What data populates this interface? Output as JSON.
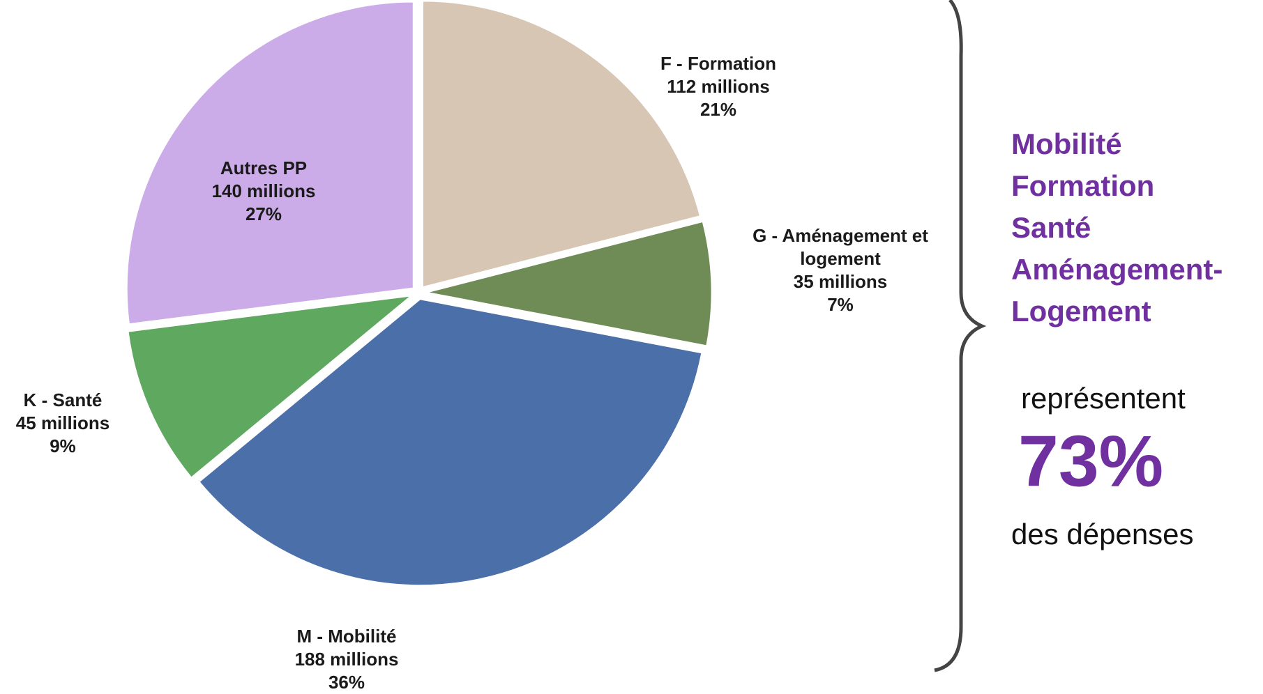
{
  "chart_data": {
    "type": "pie",
    "categories": [
      "F - Formation",
      "G - Aménagement et logement",
      "M - Mobilité",
      "K - Santé",
      "Autres PP"
    ],
    "amounts": [
      112,
      35,
      188,
      45,
      140
    ],
    "amount_labels": [
      "112 millions",
      "35 millions",
      "188 millions",
      "45 millions",
      "140 millions"
    ],
    "values": [
      21,
      7,
      36,
      9,
      27
    ],
    "value_labels": [
      "21%",
      "7%",
      "36%",
      "9%",
      "27%"
    ],
    "colors": [
      "#d8c6b4",
      "#6f8c57",
      "#4b6fa8",
      "#5fa860",
      "#cbabe8"
    ],
    "annotation": {
      "highlights": [
        "Mobilité",
        "Formation",
        "Santé",
        "Aménagement-",
        "Logement"
      ],
      "verb": "représentent",
      "share": "73%",
      "tail": "des dépenses"
    }
  }
}
